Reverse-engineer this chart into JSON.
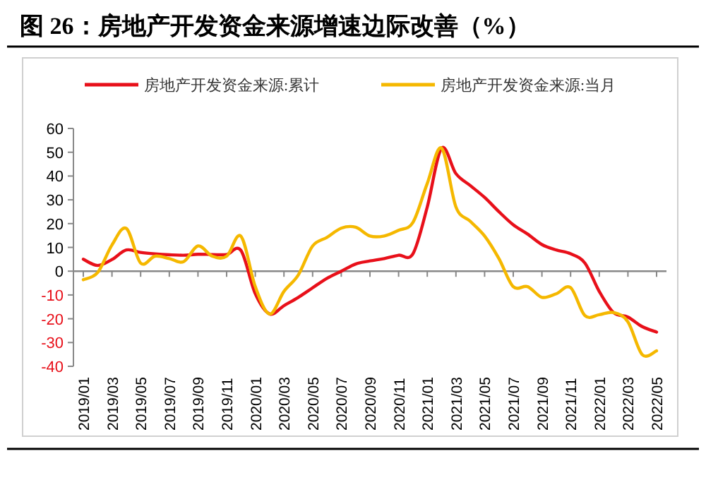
{
  "chart_data": {
    "type": "line",
    "title": "图 26：房地产开发资金来源增速边际改善（%）",
    "categories": [
      "2019/01",
      null,
      "2019/03",
      null,
      "2019/05",
      null,
      "2019/07",
      null,
      "2019/09",
      null,
      "2019/11",
      null,
      "2020/01",
      null,
      "2020/03",
      null,
      "2020/05",
      null,
      "2020/07",
      null,
      "2020/09",
      null,
      "2020/11",
      null,
      "2021/01",
      null,
      "2021/03",
      null,
      "2021/05",
      null,
      "2021/07",
      null,
      "2021/09",
      null,
      "2021/11",
      null,
      "2022/01",
      null,
      "2022/03",
      null,
      "2022/05"
    ],
    "series": [
      {
        "name": "房地产开发资金来源:累计",
        "color": "#e8101a",
        "values": [
          5,
          2.4,
          4.9,
          8.9,
          7.9,
          7.3,
          6.9,
          6.7,
          7.1,
          7,
          7,
          8.7,
          -9.5,
          -18,
          -14.5,
          -11,
          -7,
          -3,
          0,
          3,
          4.3,
          5.3,
          6.7,
          7.3,
          27,
          51.7,
          41,
          36,
          31,
          25,
          19.5,
          15.6,
          11.2,
          8.9,
          7.3,
          3.4,
          -8.5,
          -17.4,
          -19.3,
          -23.3,
          -25.6
        ]
      },
      {
        "name": "房地产开发资金来源:当月",
        "color": "#f5b800",
        "values": [
          -3.6,
          -0.6,
          11,
          18,
          3.4,
          6.3,
          5.3,
          4,
          10.6,
          6.3,
          6.3,
          14.7,
          -6.5,
          -18,
          -8.5,
          -1.6,
          10.6,
          14.2,
          18.1,
          18.5,
          14.8,
          14.8,
          17.2,
          20.5,
          36.9,
          51.7,
          27,
          21,
          14.8,
          5.3,
          -6.5,
          -6.5,
          -11,
          -9.5,
          -6.9,
          -18.7,
          -18.3,
          -17.4,
          -21.3,
          -35.1,
          -33.5
        ]
      }
    ],
    "ylim": [
      -40,
      60
    ],
    "yticks": [
      -40,
      -30,
      -20,
      -10,
      0,
      10,
      20,
      30,
      40,
      50,
      60
    ],
    "legend": "top",
    "marker": "none",
    "line_style": "solid"
  }
}
